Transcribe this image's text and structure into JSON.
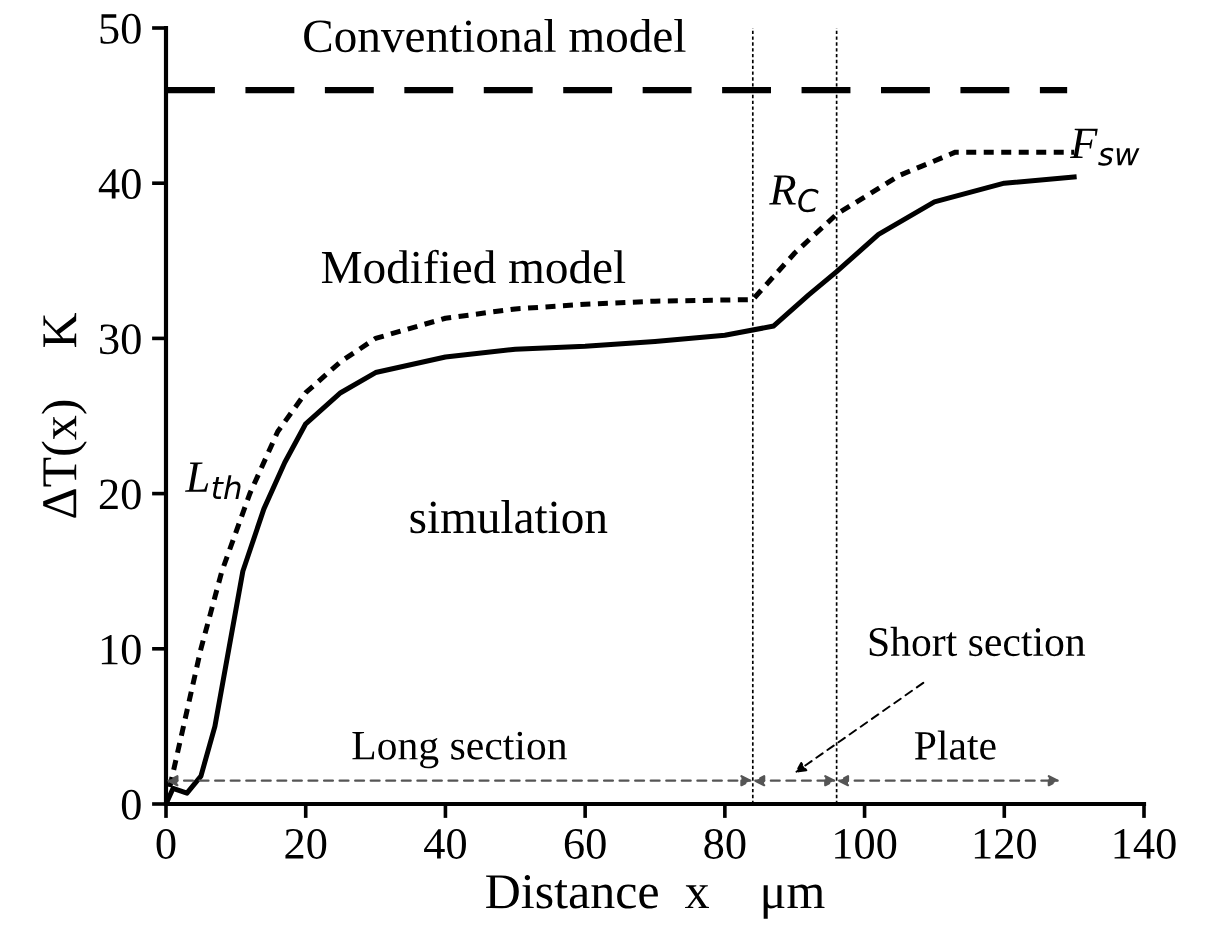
{
  "chart_data": {
    "type": "line",
    "xlabel": "Distance  x    μm",
    "ylabel": "ΔT(x)    K",
    "xlim": [
      0,
      140
    ],
    "xticks": [
      0,
      20,
      40,
      60,
      80,
      100,
      120,
      140
    ],
    "ylim": [
      0,
      50
    ],
    "yticks": [
      0,
      10,
      20,
      30,
      40,
      50
    ],
    "grid": false,
    "legend": false,
    "series": [
      {
        "name": "Conventional model",
        "color": "#000000",
        "line_style": "dashed",
        "x": [
          0,
          129
        ],
        "values": [
          46,
          46
        ]
      },
      {
        "name": "Modified model",
        "color": "#000000",
        "line_style": "dotted",
        "x": [
          0,
          1,
          3,
          5,
          8,
          12,
          16,
          20,
          25,
          30,
          40,
          50,
          60,
          70,
          84,
          90,
          96,
          105,
          113,
          130
        ],
        "values": [
          0,
          2,
          6,
          10,
          15,
          20,
          24,
          26.5,
          28.5,
          30,
          31.3,
          31.9,
          32.2,
          32.4,
          32.5,
          35.5,
          38,
          40.5,
          42,
          42
        ]
      },
      {
        "name": "simulation",
        "color": "#000000",
        "line_style": "solid",
        "x": [
          0,
          1,
          3,
          5,
          7,
          9,
          11,
          14,
          17,
          20,
          25,
          30,
          40,
          50,
          60,
          70,
          80,
          87,
          92,
          96,
          102,
          110,
          120,
          130
        ],
        "values": [
          0,
          1,
          0.7,
          1.8,
          5,
          10,
          15,
          19,
          22,
          24.5,
          26.5,
          27.8,
          28.8,
          29.3,
          29.5,
          29.8,
          30.2,
          30.8,
          32.8,
          34.3,
          36.7,
          38.8,
          40,
          40.4
        ]
      }
    ],
    "ref_lines": [
      {
        "axis": "x",
        "value": 84,
        "line_style": "dotted",
        "color": "#000000"
      },
      {
        "axis": "x",
        "value": 96,
        "line_style": "dotted",
        "color": "#000000"
      }
    ],
    "annotations": [
      "L$_{th}$",
      "R$_{C}$",
      "F$_{sw}$",
      "Long section",
      "Short section",
      "Plate"
    ]
  }
}
